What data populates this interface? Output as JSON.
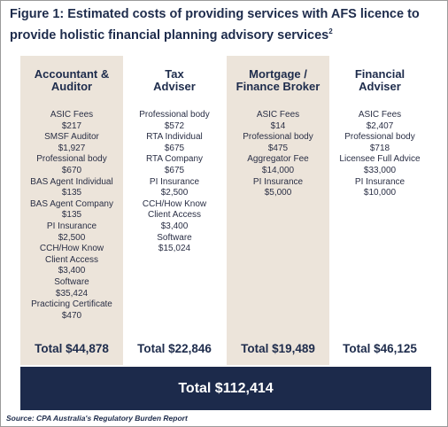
{
  "header": {
    "title": "Figure 1: Estimated costs of providing services with AFS licence to provide holistic financial planning advisory services",
    "footnote_ref": "2"
  },
  "columns": [
    {
      "header": [
        "Accountant &",
        "Auditor"
      ],
      "items": [
        "ASIC Fees",
        "$217",
        "SMSF Auditor",
        "$1,927",
        "Professional body",
        "$670",
        "BAS Agent Individual",
        "$135",
        "BAS Agent Company",
        "$135",
        "PI Insurance",
        "$2,500",
        "CCH/How Know",
        "Client Access",
        "$3,400",
        "Software",
        "$35,424",
        "Practicing Certificate",
        "$470"
      ],
      "total": "Total $44,878"
    },
    {
      "header": [
        "Tax",
        "Adviser"
      ],
      "items": [
        "Professional body",
        "$572",
        "RTA Individual",
        "$675",
        "RTA Company",
        "$675",
        "PI Insurance",
        "$2,500",
        "CCH/How Know",
        "Client Access",
        "$3,400",
        "Software",
        "$15,024"
      ],
      "total": "Total $22,846"
    },
    {
      "header": [
        "Mortgage /",
        "Finance Broker"
      ],
      "items": [
        "ASIC Fees",
        "$14",
        "Professional body",
        "$475",
        "Aggregator Fee",
        "$14,000",
        "PI Insurance",
        "$5,000"
      ],
      "total": "Total $19,489"
    },
    {
      "header": [
        "Financial",
        "Adviser"
      ],
      "items": [
        "ASIC Fees",
        "$2,407",
        "Professional body",
        "$718",
        "Licensee Full Advice",
        "$33,000",
        "PI Insurance",
        "$10,000"
      ],
      "total": "Total $46,125"
    }
  ],
  "grand_total": "Total $112,414",
  "source": "Source: CPA Australia's Regulatory Burden Report"
}
